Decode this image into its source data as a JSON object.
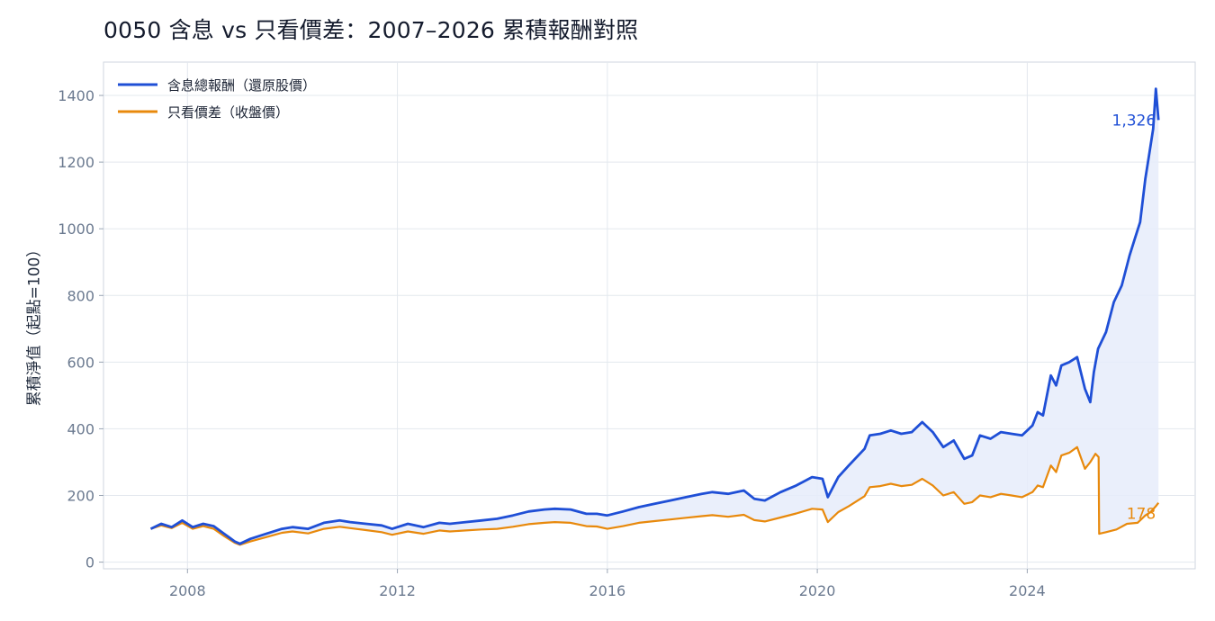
{
  "chart_data": {
    "type": "line",
    "title": "0050 含息 vs 只看價差：2007–2026 累積報酬對照",
    "xlabel": "",
    "ylabel": "累積淨值（起點=100）",
    "xlim": [
      2006.4,
      2027.2
    ],
    "ylim": [
      -20,
      1500
    ],
    "x_ticks": [
      2008,
      2012,
      2016,
      2020,
      2024
    ],
    "y_ticks": [
      0,
      200,
      400,
      600,
      800,
      1000,
      1200,
      1400
    ],
    "grid": true,
    "legend_position": "top-left",
    "fill_between": true,
    "colors": {
      "total_return": "#1f4fd6",
      "price_only": "#e8890c",
      "fill": "#e6ecfa",
      "grid": "#e3e8ee",
      "axis": "#cfd6df"
    },
    "series": [
      {
        "name": "含息總報酬（還原股價）",
        "end_label": "1,326",
        "x": [
          2007.3,
          2007.5,
          2007.7,
          2007.9,
          2008.1,
          2008.3,
          2008.5,
          2008.7,
          2008.9,
          2009.0,
          2009.2,
          2009.5,
          2009.8,
          2010.0,
          2010.3,
          2010.6,
          2010.9,
          2011.1,
          2011.4,
          2011.7,
          2011.9,
          2012.2,
          2012.5,
          2012.8,
          2013.0,
          2013.3,
          2013.6,
          2013.9,
          2014.2,
          2014.5,
          2014.8,
          2015.0,
          2015.3,
          2015.6,
          2015.8,
          2016.0,
          2016.3,
          2016.6,
          2016.9,
          2017.2,
          2017.5,
          2017.8,
          2018.0,
          2018.3,
          2018.6,
          2018.8,
          2019.0,
          2019.3,
          2019.6,
          2019.9,
          2020.1,
          2020.2,
          2020.4,
          2020.6,
          2020.9,
          2021.0,
          2021.2,
          2021.4,
          2021.6,
          2021.8,
          2022.0,
          2022.2,
          2022.4,
          2022.6,
          2022.8,
          2022.95,
          2023.1,
          2023.3,
          2023.5,
          2023.7,
          2023.9,
          2024.1,
          2024.2,
          2024.3,
          2024.45,
          2024.55,
          2024.65,
          2024.8,
          2024.95,
          2025.1,
          2025.2,
          2025.27,
          2025.35,
          2025.5,
          2025.65,
          2025.8,
          2025.95,
          2026.05,
          2026.15,
          2026.25,
          2026.32,
          2026.4,
          2026.45,
          2026.5
        ],
        "values": [
          100,
          115,
          105,
          125,
          105,
          115,
          108,
          85,
          62,
          55,
          70,
          85,
          100,
          105,
          100,
          118,
          125,
          120,
          115,
          110,
          100,
          115,
          105,
          118,
          115,
          120,
          125,
          130,
          140,
          152,
          158,
          160,
          158,
          145,
          145,
          140,
          152,
          165,
          175,
          185,
          195,
          205,
          210,
          205,
          215,
          190,
          185,
          210,
          230,
          255,
          250,
          195,
          255,
          290,
          340,
          380,
          385,
          395,
          385,
          390,
          420,
          390,
          345,
          365,
          310,
          320,
          380,
          370,
          390,
          385,
          380,
          410,
          450,
          440,
          560,
          530,
          590,
          600,
          615,
          520,
          480,
          570,
          640,
          690,
          780,
          830,
          920,
          970,
          1020,
          1150,
          1220,
          1300,
          1420,
          1326
        ]
      },
      {
        "name": "只看價差（收盤價）",
        "end_label": "178",
        "x": [
          2007.3,
          2007.5,
          2007.7,
          2007.9,
          2008.1,
          2008.3,
          2008.5,
          2008.7,
          2008.9,
          2009.0,
          2009.2,
          2009.5,
          2009.8,
          2010.0,
          2010.3,
          2010.6,
          2010.9,
          2011.1,
          2011.4,
          2011.7,
          2011.9,
          2012.2,
          2012.5,
          2012.8,
          2013.0,
          2013.3,
          2013.6,
          2013.9,
          2014.2,
          2014.5,
          2014.8,
          2015.0,
          2015.3,
          2015.6,
          2015.8,
          2016.0,
          2016.3,
          2016.6,
          2016.9,
          2017.2,
          2017.5,
          2017.8,
          2018.0,
          2018.3,
          2018.6,
          2018.8,
          2019.0,
          2019.3,
          2019.6,
          2019.9,
          2020.1,
          2020.2,
          2020.4,
          2020.6,
          2020.9,
          2021.0,
          2021.2,
          2021.4,
          2021.6,
          2021.8,
          2022.0,
          2022.2,
          2022.4,
          2022.6,
          2022.8,
          2022.95,
          2023.1,
          2023.3,
          2023.5,
          2023.7,
          2023.9,
          2024.1,
          2024.2,
          2024.3,
          2024.45,
          2024.55,
          2024.65,
          2024.8,
          2024.95,
          2025.1,
          2025.2,
          2025.3,
          2025.36,
          2025.37,
          2025.5,
          2025.7,
          2025.9,
          2026.1,
          2026.25,
          2026.35,
          2026.45,
          2026.5
        ],
        "values": [
          100,
          110,
          102,
          118,
          100,
          108,
          100,
          78,
          58,
          52,
          62,
          75,
          88,
          92,
          86,
          100,
          106,
          102,
          96,
          90,
          82,
          92,
          85,
          95,
          92,
          95,
          98,
          100,
          106,
          114,
          118,
          120,
          118,
          108,
          107,
          100,
          108,
          118,
          123,
          128,
          133,
          138,
          141,
          136,
          142,
          126,
          122,
          134,
          146,
          160,
          158,
          120,
          150,
          168,
          198,
          225,
          228,
          235,
          228,
          232,
          250,
          230,
          200,
          210,
          175,
          180,
          200,
          195,
          205,
          200,
          195,
          210,
          230,
          225,
          290,
          270,
          320,
          328,
          345,
          280,
          300,
          325,
          315,
          85,
          90,
          98,
          115,
          118,
          140,
          150,
          168,
          178
        ]
      }
    ]
  }
}
